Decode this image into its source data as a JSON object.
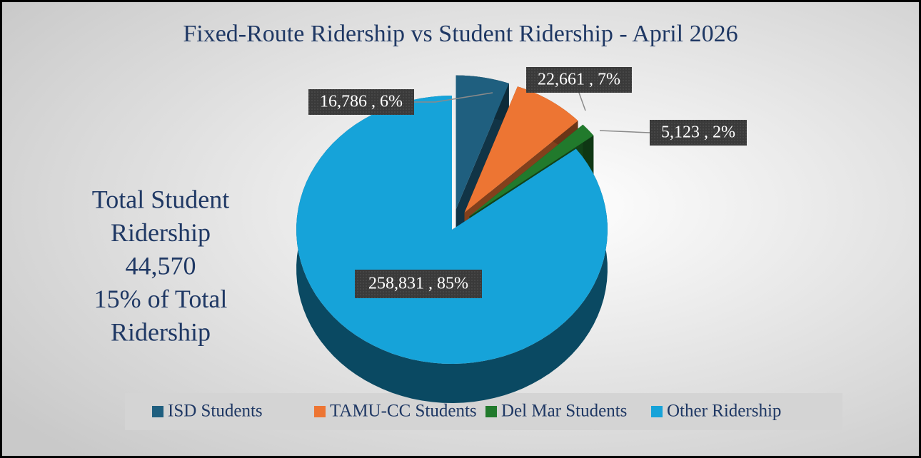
{
  "chart_data": {
    "type": "pie",
    "title": "Fixed-Route Ridership vs Student Ridership - April 2026",
    "categories": [
      "ISD Students",
      "TAMU-CC Students",
      "Del Mar Students",
      "Other Ridership"
    ],
    "values": [
      16786,
      22661,
      5123,
      258831
    ],
    "value_labels": [
      "16,786 , 6%",
      "22,661 , 7%",
      "5,123 , 2%",
      "258,831 , 85%"
    ],
    "colors": [
      "#1f5f7f",
      "#ed7533",
      "#217a2c",
      "#16a3d9"
    ],
    "annotation": [
      "Total Student",
      "Ridership",
      "44,570",
      "15% of Total",
      "Ridership"
    ],
    "legend": "bottom"
  }
}
